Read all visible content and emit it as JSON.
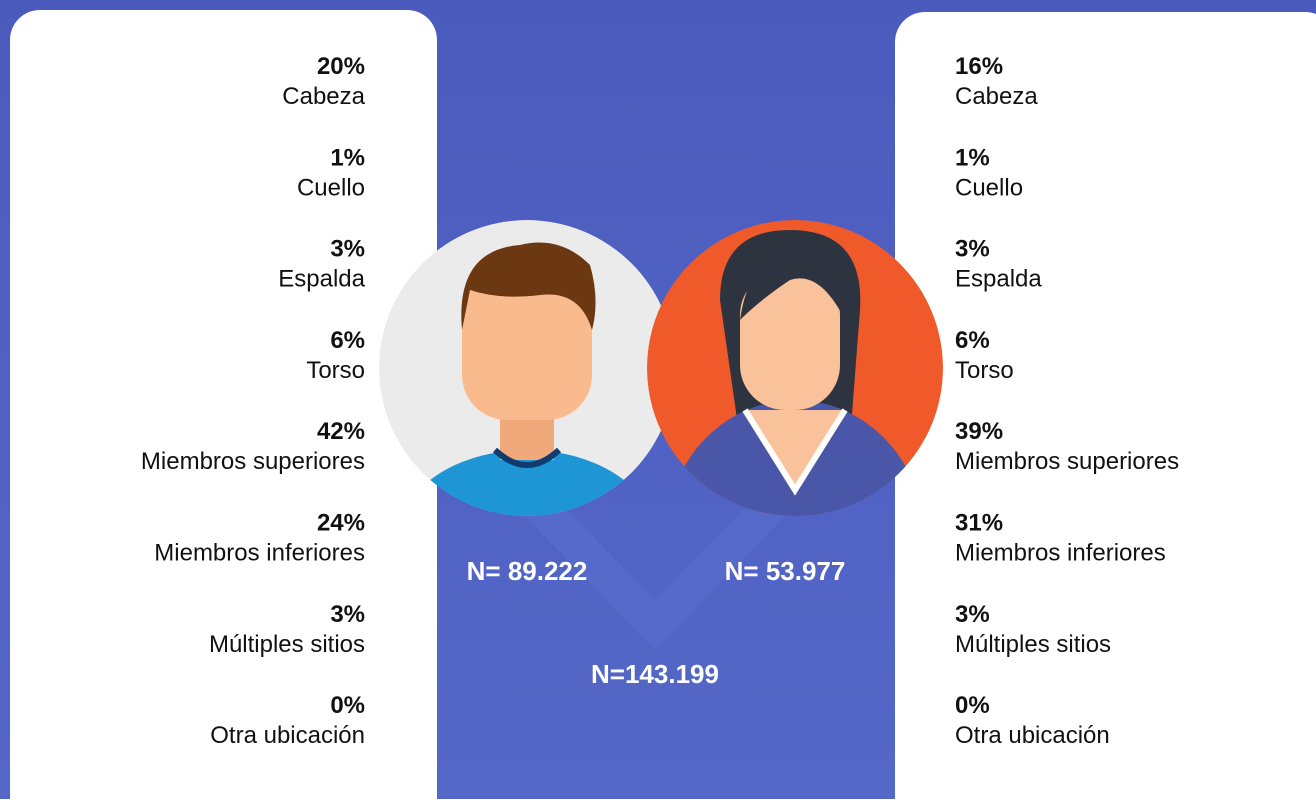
{
  "left": {
    "items": [
      {
        "percent": "20%",
        "label": "Cabeza"
      },
      {
        "percent": "1%",
        "label": "Cuello"
      },
      {
        "percent": "3%",
        "label": "Espalda"
      },
      {
        "percent": "6%",
        "label": "Torso"
      },
      {
        "percent": "42%",
        "label": "Miembros superiores"
      },
      {
        "percent": "24%",
        "label": "Miembros inferiores"
      },
      {
        "percent": "3%",
        "label": "Múltiples sitios"
      },
      {
        "percent": "0%",
        "label": "Otra ubicación"
      }
    ]
  },
  "right": {
    "items": [
      {
        "percent": "16%",
        "label": "Cabeza"
      },
      {
        "percent": "1%",
        "label": "Cuello"
      },
      {
        "percent": "3%",
        "label": "Espalda"
      },
      {
        "percent": "6%",
        "label": "Torso"
      },
      {
        "percent": "39%",
        "label": "Miembros superiores"
      },
      {
        "percent": "31%",
        "label": "Miembros inferiores"
      },
      {
        "percent": "3%",
        "label": "Múltiples sitios"
      },
      {
        "percent": "0%",
        "label": "Otra ubicación"
      }
    ]
  },
  "male_n": "N= 89.222",
  "female_n": "N= 53.977",
  "total_n": "N=143.199"
}
